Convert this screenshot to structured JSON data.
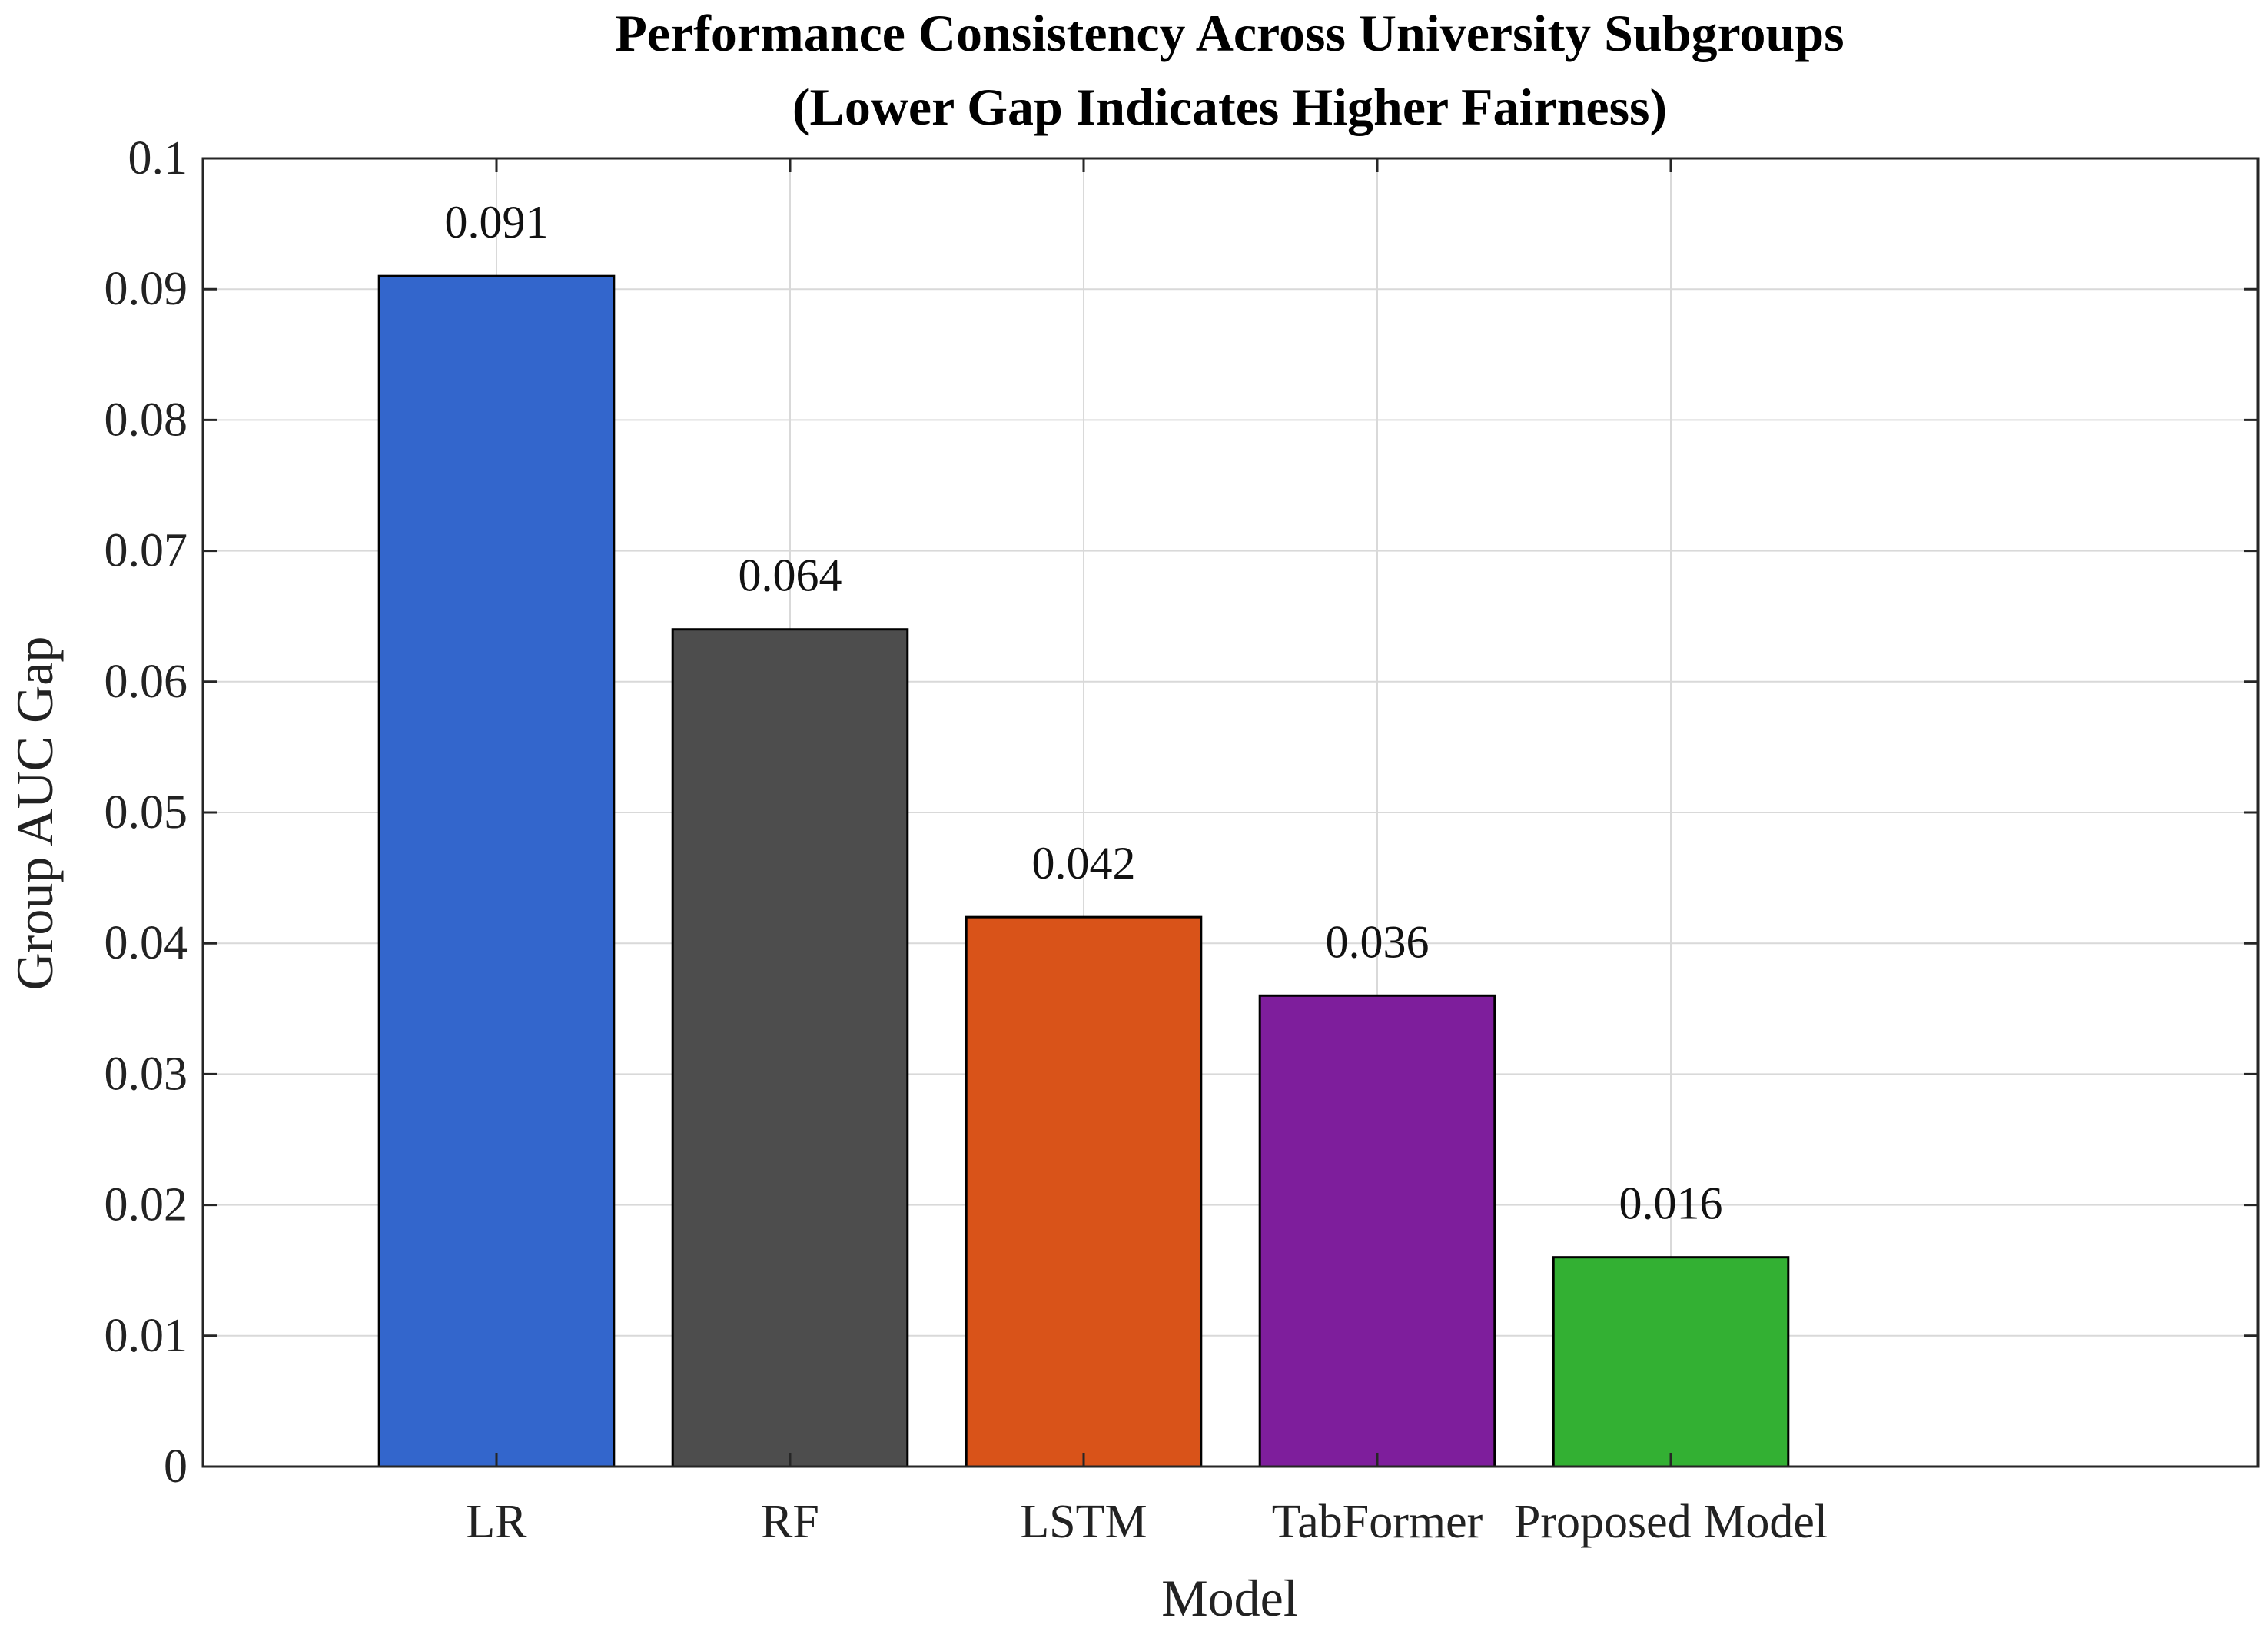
{
  "chart_data": {
    "type": "bar",
    "title_line1": "Performance Consistency Across University Subgroups",
    "title_line2": "(Lower Gap Indicates Higher Fairness)",
    "xlabel": "Model",
    "ylabel": "Group AUC Gap",
    "categories": [
      "LR",
      "RF",
      "LSTM",
      "TabFormer",
      "Proposed Model"
    ],
    "values": [
      0.091,
      0.064,
      0.042,
      0.036,
      0.016
    ],
    "value_labels": [
      "0.091",
      "0.064",
      "0.042",
      "0.036",
      "0.016"
    ],
    "colors": [
      "#3366cc",
      "#4d4d4d",
      "#d95319",
      "#7e1e9c",
      "#33b033"
    ],
    "ylim": [
      0,
      0.1
    ],
    "yticks": [
      0,
      0.01,
      0.02,
      0.03,
      0.04,
      0.05,
      0.06,
      0.07,
      0.08,
      0.09,
      0.1
    ],
    "ytick_labels": [
      "0",
      "0.01",
      "0.02",
      "0.03",
      "0.04",
      "0.05",
      "0.06",
      "0.07",
      "0.08",
      "0.09",
      "0.1"
    ],
    "xlim": [
      0,
      7
    ],
    "grid": true
  }
}
